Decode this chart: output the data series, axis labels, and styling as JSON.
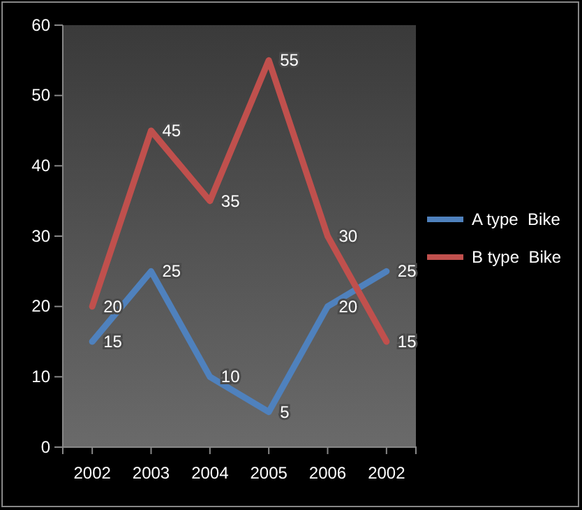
{
  "chart_data": {
    "type": "line",
    "categories": [
      "2002",
      "2003",
      "2004",
      "2005",
      "2006",
      "2002"
    ],
    "series": [
      {
        "name": "A type  Bike",
        "color": "#4f81bd",
        "values": [
          15,
          25,
          10,
          5,
          20,
          25
        ]
      },
      {
        "name": "B type  Bike",
        "color": "#c0504d",
        "values": [
          20,
          45,
          35,
          55,
          30,
          15
        ]
      }
    ],
    "ylim": [
      0,
      60
    ],
    "yticks": [
      0,
      10,
      20,
      30,
      40,
      50,
      60
    ],
    "grid": false,
    "legend": "right",
    "data_labels": true,
    "marker": "none",
    "line_style": "solid"
  }
}
